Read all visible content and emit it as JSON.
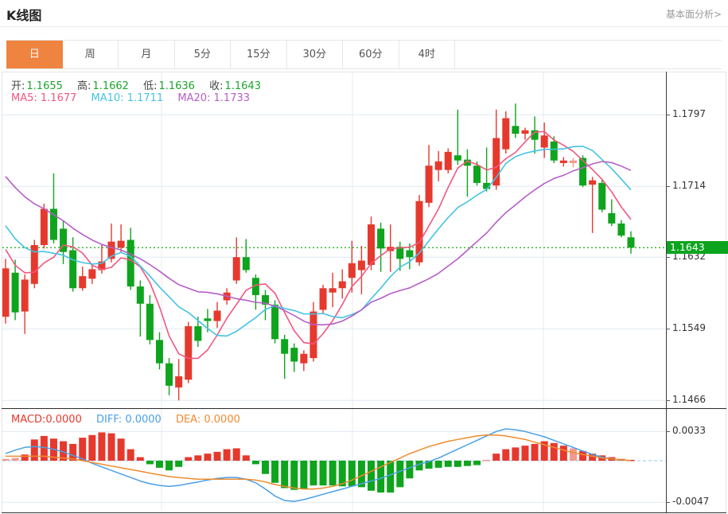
{
  "header": {
    "title": "K线图",
    "link_label": "基本面分析>"
  },
  "tabs": {
    "items": [
      {
        "label": "日",
        "active": true
      },
      {
        "label": "周",
        "active": false
      },
      {
        "label": "月",
        "active": false
      },
      {
        "label": "5分",
        "active": false
      },
      {
        "label": "15分",
        "active": false
      },
      {
        "label": "30分",
        "active": false
      },
      {
        "label": "60分",
        "active": false
      },
      {
        "label": "4时",
        "active": false
      }
    ]
  },
  "info": {
    "open_label": "开:",
    "open_value": "1.1655",
    "high_label": "高:",
    "high_value": "1.1662",
    "low_label": "低:",
    "low_value": "1.1636",
    "close_label": "收:",
    "close_value": "1.1643",
    "ma5_label": "MA5:",
    "ma5_value": "1.1677",
    "ma10_label": "MA10:",
    "ma10_value": "1.1711",
    "ma20_label": "MA20:",
    "ma20_value": "1.1733"
  },
  "macd_info": {
    "macd_label": "MACD:",
    "macd_value": "0.0000",
    "diff_label": "DIFF:",
    "diff_value": "0.0000",
    "dea_label": "DEA:",
    "dea_value": "0.0000"
  },
  "price_tag": {
    "value": "1.1643"
  },
  "colors": {
    "up": "#e6392e",
    "up_light": "#f2998f",
    "down": "#0fa41d",
    "ma5": "#f2577f",
    "ma10": "#44c3e4",
    "ma20": "#b55fc6",
    "diff": "#4aa0e8",
    "dea": "#ef8b2e",
    "tag_bg": "#0ca41e",
    "dotted": "#38b838",
    "grid_h": "#dfeaf3",
    "grid_v": "#ebebf2",
    "zero_dash": "#a9d3ee",
    "tab_active": "#ee8440",
    "value_green": "#1da52d"
  },
  "chart_data": {
    "type": "candlestick",
    "title": "K线图",
    "main": {
      "y_axis_ticks": [
        1.1797,
        1.1714,
        1.1632,
        1.1549,
        1.1466
      ],
      "y_domain": [
        1.1457,
        1.1847
      ],
      "current_price": 1.1643,
      "v_grid_x": [
        200,
        440,
        680
      ],
      "ohlc_display": {
        "open": 1.1655,
        "high": 1.1662,
        "low": 1.1636,
        "close": 1.1643
      },
      "ma_display": {
        "ma5": 1.1677,
        "ma10": 1.1711,
        "ma20": 1.1733
      },
      "ma_periods": [
        5,
        10,
        20
      ],
      "ma_pre_closes": [
        1.183,
        1.1825,
        1.182,
        1.181,
        1.18,
        1.179,
        1.178,
        1.1768,
        1.1756,
        1.1744,
        1.1732,
        1.172,
        1.1708,
        1.1696,
        1.1684,
        1.1672,
        1.166,
        1.165,
        1.1642,
        1.1634
      ],
      "candles": [
        [
          1.1563,
          1.163,
          1.1555,
          1.1619,
          "u"
        ],
        [
          1.1614,
          1.1629,
          1.1559,
          1.1568,
          "d"
        ],
        [
          1.1569,
          1.1612,
          1.1543,
          1.1606,
          "u"
        ],
        [
          1.1601,
          1.1652,
          1.1596,
          1.1646,
          "u"
        ],
        [
          1.1646,
          1.1694,
          1.1642,
          1.1688,
          "u"
        ],
        [
          1.1688,
          1.1729,
          1.1648,
          1.1652,
          "d"
        ],
        [
          1.1665,
          1.1674,
          1.1624,
          1.1638,
          "d"
        ],
        [
          1.164,
          1.1655,
          1.1592,
          1.1596,
          "d"
        ],
        [
          1.1596,
          1.1621,
          1.1593,
          1.161,
          "u"
        ],
        [
          1.1607,
          1.1623,
          1.1601,
          1.1618,
          "u"
        ],
        [
          1.1617,
          1.1646,
          1.1613,
          1.1627,
          "u"
        ],
        [
          1.163,
          1.1671,
          1.1626,
          1.165,
          "u"
        ],
        [
          1.1643,
          1.167,
          1.1638,
          1.1651,
          "u"
        ],
        [
          1.1652,
          1.1666,
          1.1594,
          1.1598,
          "d"
        ],
        [
          1.1598,
          1.1605,
          1.154,
          1.1578,
          "d"
        ],
        [
          1.1578,
          1.1588,
          1.1531,
          1.1536,
          "d"
        ],
        [
          1.1536,
          1.1545,
          1.1502,
          1.1509,
          "d"
        ],
        [
          1.1509,
          1.1515,
          1.1472,
          1.1483,
          "d"
        ],
        [
          1.1481,
          1.1514,
          1.1466,
          1.1494,
          "u"
        ],
        [
          1.149,
          1.1557,
          1.1486,
          1.1552,
          "u"
        ],
        [
          1.1552,
          1.1563,
          1.1528,
          1.1535,
          "d"
        ],
        [
          1.1561,
          1.1572,
          1.1545,
          1.1558,
          "d"
        ],
        [
          1.1558,
          1.158,
          1.155,
          1.157,
          "u"
        ],
        [
          1.1582,
          1.1596,
          1.1577,
          1.1591,
          "u"
        ],
        [
          1.1605,
          1.1655,
          1.1601,
          1.1632,
          "u"
        ],
        [
          1.1632,
          1.1653,
          1.1614,
          1.1617,
          "d"
        ],
        [
          1.1608,
          1.1612,
          1.1571,
          1.1588,
          "d"
        ],
        [
          1.1588,
          1.1594,
          1.1559,
          1.1577,
          "d"
        ],
        [
          1.1577,
          1.1582,
          1.1532,
          1.1537,
          "d"
        ],
        [
          1.1537,
          1.1542,
          1.1491,
          1.152,
          "d"
        ],
        [
          1.1527,
          1.1532,
          1.1499,
          1.1511,
          "d"
        ],
        [
          1.1509,
          1.1524,
          1.15,
          1.152,
          "u"
        ],
        [
          1.1515,
          1.158,
          1.1511,
          1.1569,
          "u"
        ],
        [
          1.1571,
          1.16,
          1.1566,
          1.1596,
          "u"
        ],
        [
          1.1591,
          1.1614,
          1.1574,
          1.1596,
          "u"
        ],
        [
          1.1596,
          1.1618,
          1.1584,
          1.1604,
          "u"
        ],
        [
          1.1608,
          1.1651,
          1.1591,
          1.1625,
          "u"
        ],
        [
          1.1617,
          1.1645,
          1.1589,
          1.1628,
          "u"
        ],
        [
          1.1623,
          1.1679,
          1.1617,
          1.167,
          "u"
        ],
        [
          1.1665,
          1.1672,
          1.1615,
          1.1642,
          "d"
        ],
        [
          1.1639,
          1.167,
          1.1615,
          1.1644,
          "u"
        ],
        [
          1.1644,
          1.165,
          1.1616,
          1.163,
          "d"
        ],
        [
          1.164,
          1.1648,
          1.1618,
          1.1632,
          "d"
        ],
        [
          1.1626,
          1.1704,
          1.1622,
          1.1697,
          "u"
        ],
        [
          1.1695,
          1.1762,
          1.169,
          1.1738,
          "u"
        ],
        [
          1.1733,
          1.1755,
          1.172,
          1.1743,
          "u"
        ],
        [
          1.1733,
          1.1758,
          1.1729,
          1.1754,
          "u"
        ],
        [
          1.175,
          1.1803,
          1.1739,
          1.1744,
          "d"
        ],
        [
          1.1745,
          1.1757,
          1.1702,
          1.1738,
          "d"
        ],
        [
          1.1738,
          1.1743,
          1.1715,
          1.1718,
          "d"
        ],
        [
          1.1718,
          1.1759,
          1.1708,
          1.1711,
          "d"
        ],
        [
          1.1715,
          1.1803,
          1.171,
          1.177,
          "u"
        ],
        [
          1.1757,
          1.1801,
          1.1752,
          1.1793,
          "u"
        ],
        [
          1.1784,
          1.181,
          1.177,
          1.1775,
          "d"
        ],
        [
          1.1775,
          1.1782,
          1.1768,
          1.1779,
          "u"
        ],
        [
          1.1779,
          1.1795,
          1.1752,
          1.1768,
          "d"
        ],
        [
          1.1759,
          1.1788,
          1.1747,
          1.1773,
          "u"
        ],
        [
          1.1766,
          1.1772,
          1.1741,
          1.1744,
          "d"
        ],
        [
          1.1741,
          1.1748,
          1.1737,
          1.1744,
          "u"
        ],
        [
          1.1741,
          1.1747,
          1.1736,
          1.1744,
          "l"
        ],
        [
          1.1747,
          1.175,
          1.1713,
          1.1715,
          "d"
        ],
        [
          1.1716,
          1.1725,
          1.166,
          1.1721,
          "u"
        ],
        [
          1.1718,
          1.1722,
          1.1684,
          1.1687,
          "d"
        ],
        [
          1.1683,
          1.1699,
          1.1668,
          1.1671,
          "d"
        ],
        [
          1.1671,
          1.1675,
          1.1655,
          1.1657,
          "d"
        ],
        [
          1.1655,
          1.1662,
          1.1636,
          1.1643,
          "d"
        ]
      ]
    },
    "macd": {
      "displayed_values": {
        "macd": 0.0,
        "diff": 0.0,
        "dea": 0.0
      },
      "y_ticks": [
        0.0033,
        -0.0047
      ],
      "tick_labels": [
        "0.0033",
        "-0.0047"
      ],
      "histogram": [
        0.0002,
        0.0003,
        0.0007,
        0.0024,
        0.0028,
        0.0025,
        0.0022,
        0.0019,
        0.0026,
        0.0029,
        0.0032,
        0.0031,
        0.0025,
        0.0013,
        0.0004,
        -0.0004,
        -0.0008,
        -0.0011,
        -0.0007,
        0.0004,
        0.0006,
        0.0008,
        0.001,
        0.0013,
        0.0014,
        0.0006,
        -0.0004,
        -0.0015,
        -0.0025,
        -0.0031,
        -0.0033,
        -0.0032,
        -0.0028,
        -0.0028,
        -0.0028,
        -0.0029,
        -0.0029,
        -0.003,
        -0.0034,
        -0.0036,
        -0.0036,
        -0.003,
        -0.002,
        -0.0011,
        -0.0009,
        -0.0008,
        -0.0007,
        -0.0007,
        -0.0006,
        -0.0005,
        0.0001,
        0.0008,
        0.0013,
        0.0015,
        0.0017,
        0.0019,
        0.0022,
        0.002,
        0.0017,
        0.0014,
        0.0011,
        0.0008,
        0.0006,
        0.0004,
        0.0002,
        0.0001
      ],
      "light_bars": [
        1,
        2,
        51,
        60
      ],
      "diff": [
        0.0008,
        0.0012,
        0.0015,
        0.0016,
        0.0015,
        0.0013,
        0.001,
        0.0006,
        0.0002,
        -0.0003,
        -0.0007,
        -0.0011,
        -0.0015,
        -0.0019,
        -0.0023,
        -0.0026,
        -0.0028,
        -0.0029,
        -0.0028,
        -0.0026,
        -0.0024,
        -0.0022,
        -0.002,
        -0.0019,
        -0.0019,
        -0.0021,
        -0.0025,
        -0.0032,
        -0.004,
        -0.0045,
        -0.0046,
        -0.0044,
        -0.0041,
        -0.0038,
        -0.0035,
        -0.0032,
        -0.0029,
        -0.0026,
        -0.0023,
        -0.002,
        -0.0016,
        -0.0012,
        -0.0008,
        -0.0004,
        -0.0001,
        0.0003,
        0.0008,
        0.0013,
        0.0018,
        0.0023,
        0.0028,
        0.0033,
        0.0036,
        0.0035,
        0.0033,
        0.003,
        0.0027,
        0.0023,
        0.0019,
        0.0015,
        0.0011,
        0.0007,
        0.0004,
        0.0002,
        0.0001,
        0.0
      ],
      "dea": [
        0.0005,
        0.0005,
        0.0005,
        0.0005,
        0.0005,
        0.0004,
        0.0003,
        0.0002,
        0.0,
        -0.0002,
        -0.0004,
        -0.0006,
        -0.0008,
        -0.001,
        -0.0012,
        -0.0014,
        -0.0016,
        -0.0018,
        -0.0019,
        -0.002,
        -0.0021,
        -0.0021,
        -0.0021,
        -0.0021,
        -0.0021,
        -0.0021,
        -0.0022,
        -0.0024,
        -0.0027,
        -0.0029,
        -0.0031,
        -0.0032,
        -0.0032,
        -0.0031,
        -0.0029,
        -0.0026,
        -0.0022,
        -0.0017,
        -0.0012,
        -0.0007,
        -0.0002,
        0.0003,
        0.0008,
        0.0012,
        0.0016,
        0.0019,
        0.0022,
        0.0024,
        0.0026,
        0.0028,
        0.0029,
        0.0029,
        0.0028,
        0.0026,
        0.0024,
        0.0021,
        0.0018,
        0.0015,
        0.0012,
        0.0009,
        0.0007,
        0.0005,
        0.0003,
        0.0002,
        0.0001,
        0.0
      ]
    }
  }
}
